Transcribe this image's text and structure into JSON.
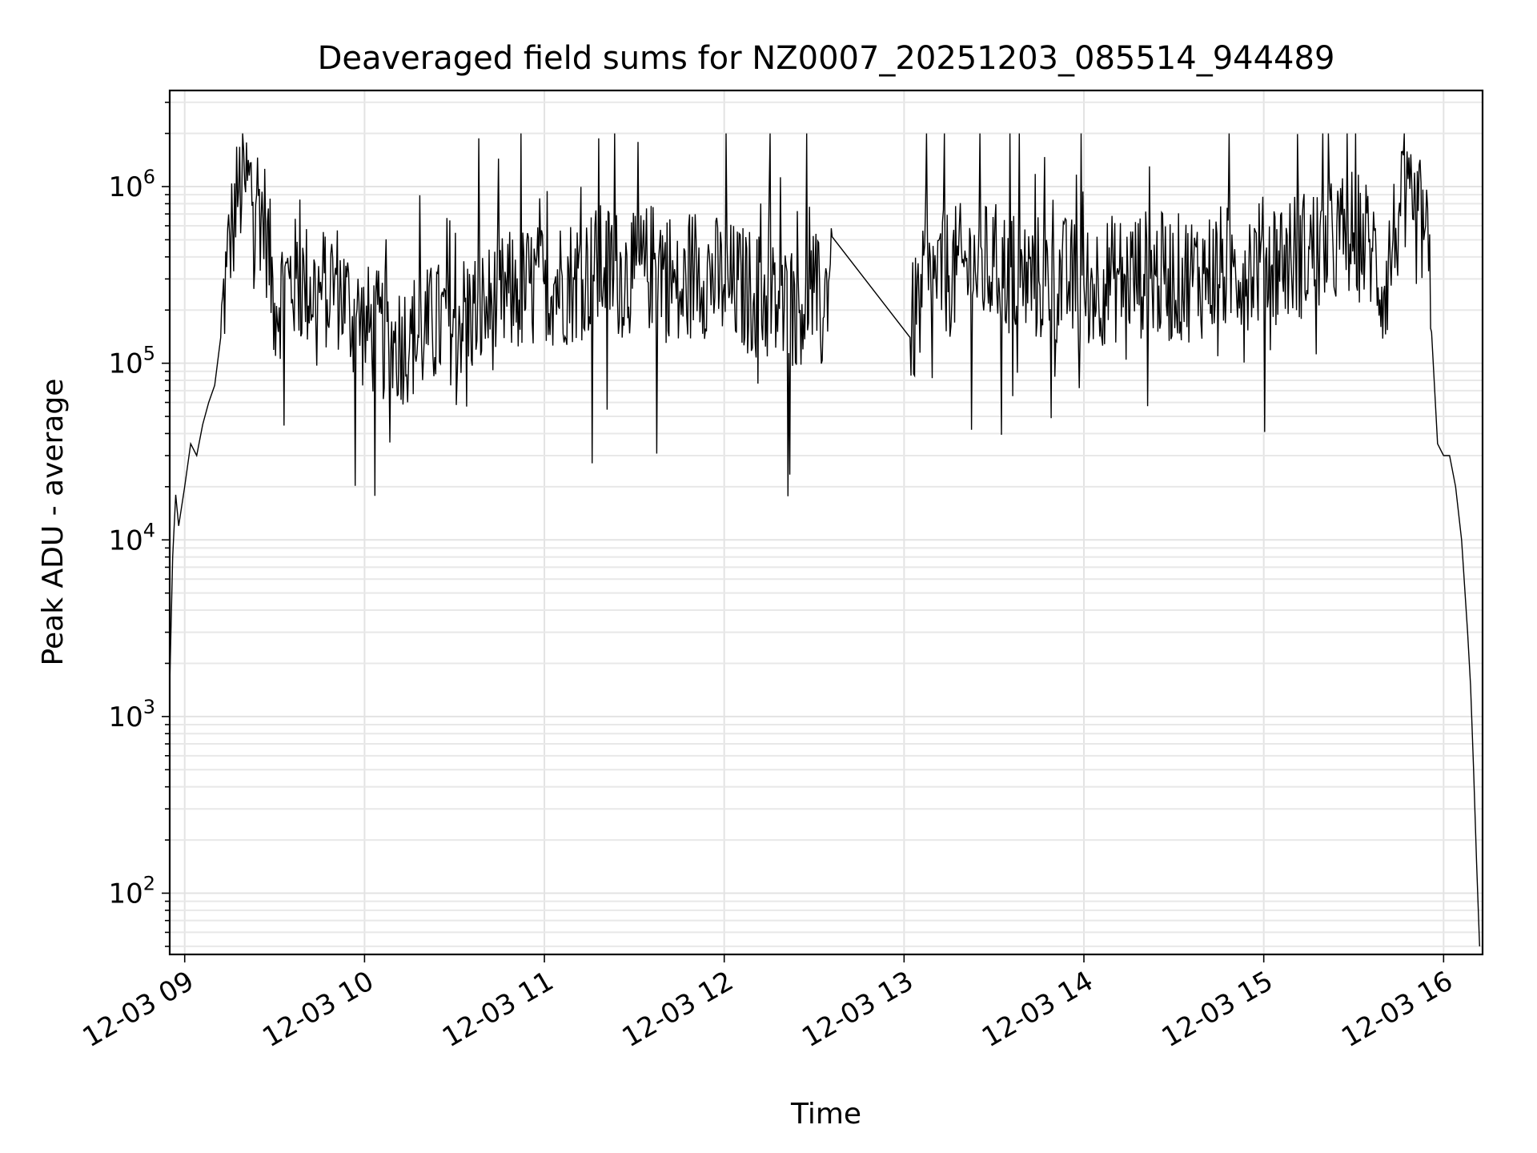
{
  "chart_data": {
    "type": "line",
    "title": "Deaveraged field sums for NZ0007_20251203_085514_944489",
    "xlabel": "Time",
    "ylabel": "Peak ADU - average",
    "xscale": "time",
    "yscale": "log",
    "xlim": [
      "2025-12-03 08:55",
      "2025-12-03 16:13"
    ],
    "ylim": [
      45,
      3500000
    ],
    "grid": true,
    "grid_minor_y": true,
    "x_tick_labels": [
      "12-03 09",
      "12-03 10",
      "12-03 11",
      "12-03 12",
      "12-03 13",
      "12-03 14",
      "12-03 15",
      "12-03 16"
    ],
    "x_tick_values": [
      "2025-12-03 09:00",
      "2025-12-03 10:00",
      "2025-12-03 11:00",
      "2025-12-03 12:00",
      "2025-12-03 13:00",
      "2025-12-03 14:00",
      "2025-12-03 15:00",
      "2025-12-03 16:00"
    ],
    "y_ticks": [
      {
        "value": 100,
        "base": "10",
        "exp": "2"
      },
      {
        "value": 1000,
        "base": "10",
        "exp": "3"
      },
      {
        "value": 10000,
        "base": "10",
        "exp": "4"
      },
      {
        "value": 100000,
        "base": "10",
        "exp": "5"
      },
      {
        "value": 1000000,
        "base": "10",
        "exp": "6"
      }
    ],
    "line_color": "#000000",
    "series": [
      {
        "x": [
          "2025-12-03 08:55",
          "2025-12-03 08:56",
          "2025-12-03 08:57",
          "2025-12-03 08:58",
          "2025-12-03 09:00",
          "2025-12-03 09:02",
          "2025-12-03 09:04",
          "2025-12-03 09:06",
          "2025-12-03 09:08",
          "2025-12-03 09:10",
          "2025-12-03 09:12",
          "2025-12-03 09:14",
          "2025-12-03 09:16",
          "2025-12-03 09:18",
          "2025-12-03 09:20",
          "2025-12-03 09:24",
          "2025-12-03 09:27",
          "2025-12-03 09:30",
          "2025-12-03 09:35",
          "2025-12-03 09:40",
          "2025-12-03 09:45",
          "2025-12-03 09:50",
          "2025-12-03 09:55",
          "2025-12-03 10:00",
          "2025-12-03 10:10",
          "2025-12-03 10:20",
          "2025-12-03 10:30",
          "2025-12-03 10:40",
          "2025-12-03 10:50",
          "2025-12-03 11:00",
          "2025-12-03 11:10",
          "2025-12-03 11:20",
          "2025-12-03 11:30",
          "2025-12-03 11:40",
          "2025-12-03 11:45",
          "2025-12-03 11:50",
          "2025-12-03 12:00",
          "2025-12-03 12:10",
          "2025-12-03 12:20",
          "2025-12-03 12:30",
          "2025-12-03 12:33",
          "2025-12-03 12:36",
          "2025-12-03 13:02",
          "2025-12-03 13:05",
          "2025-12-03 13:10",
          "2025-12-03 13:20",
          "2025-12-03 13:30",
          "2025-12-03 13:40",
          "2025-12-03 13:50",
          "2025-12-03 14:00",
          "2025-12-03 14:10",
          "2025-12-03 14:20",
          "2025-12-03 14:30",
          "2025-12-03 14:40",
          "2025-12-03 14:50",
          "2025-12-03 15:00",
          "2025-12-03 15:10",
          "2025-12-03 15:20",
          "2025-12-03 15:30",
          "2025-12-03 15:36",
          "2025-12-03 15:40",
          "2025-12-03 15:45",
          "2025-12-03 15:50",
          "2025-12-03 15:54",
          "2025-12-03 15:56",
          "2025-12-03 15:58",
          "2025-12-03 16:00",
          "2025-12-03 16:02",
          "2025-12-03 16:04",
          "2025-12-03 16:06",
          "2025-12-03 16:08",
          "2025-12-03 16:09",
          "2025-12-03 16:10",
          "2025-12-03 16:11",
          "2025-12-03 16:12"
        ],
        "y": [
          1500,
          8000,
          18000,
          12000,
          20000,
          35000,
          30000,
          45000,
          60000,
          75000,
          140000,
          350000,
          600000,
          950000,
          1050000,
          900000,
          600000,
          220000,
          300000,
          280000,
          250000,
          300000,
          200000,
          160000,
          130000,
          150000,
          180000,
          200000,
          250000,
          280000,
          300000,
          350000,
          300000,
          400000,
          220000,
          350000,
          280000,
          250000,
          200000,
          250000,
          180000,
          520000,
          140000,
          220000,
          300000,
          350000,
          350000,
          300000,
          300000,
          280000,
          300000,
          320000,
          300000,
          320000,
          350000,
          380000,
          400000,
          450000,
          550000,
          450000,
          250000,
          700000,
          650000,
          600000,
          150000,
          35000,
          30000,
          30000,
          20000,
          10000,
          3000,
          1500,
          500,
          150,
          50
        ]
      }
    ]
  }
}
